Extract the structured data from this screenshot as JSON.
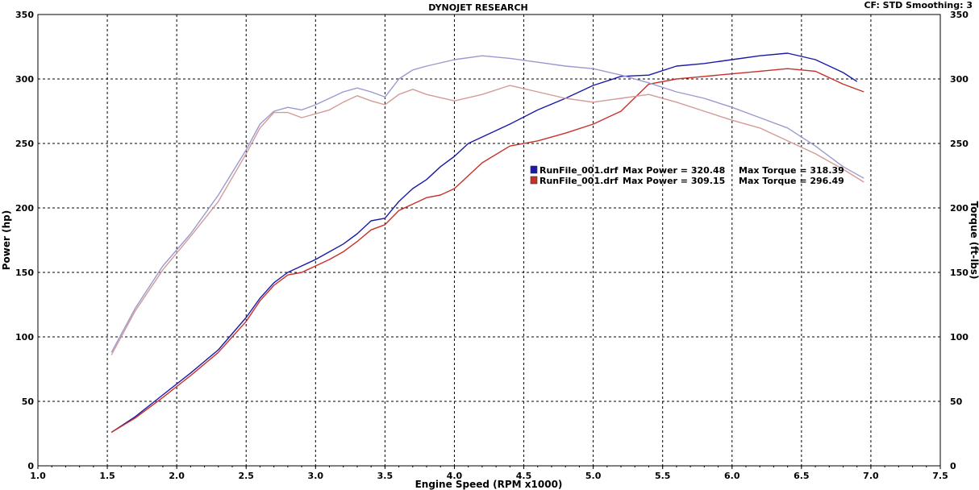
{
  "chart_data": {
    "type": "line",
    "title": "DYNOJET RESEARCH",
    "info": "CF: STD  Smoothing: 3",
    "xlabel": "Engine Speed (RPM x1000)",
    "ylabel": "Power (hp)",
    "y2label": "Torque (ft-lbs)",
    "xlim": [
      1.0,
      7.5
    ],
    "ylim": [
      0,
      350
    ],
    "y2lim": [
      0,
      350
    ],
    "xticks": [
      "1.0",
      "1.5",
      "2.0",
      "2.5",
      "3.0",
      "3.5",
      "4.0",
      "4.5",
      "5.0",
      "5.5",
      "6.0",
      "6.5",
      "7.0",
      "7.5"
    ],
    "yticks": [
      "0",
      "50",
      "100",
      "150",
      "200",
      "250",
      "300",
      "350"
    ],
    "y2ticks": [
      "0",
      "50",
      "100",
      "150",
      "200",
      "250",
      "300",
      "350"
    ],
    "grid": true,
    "legend_position": "center-right",
    "legend": [
      {
        "file": "RunFile_001.drf",
        "power_label": "Max Power = 320.48",
        "torque_label": "Max Torque = 318.39",
        "color": "#1a1aa8"
      },
      {
        "file": "RunFile_001.drf",
        "power_label": "Max Power = 309.15",
        "torque_label": "Max Torque = 296.49",
        "color": "#c8302a"
      }
    ],
    "series": [
      {
        "measure": "power",
        "color": "#1a1aa8",
        "x": [
          1.53,
          1.7,
          1.9,
          2.1,
          2.3,
          2.5,
          2.6,
          2.7,
          2.8,
          2.9,
          3.0,
          3.1,
          3.2,
          3.3,
          3.4,
          3.5,
          3.6,
          3.7,
          3.8,
          3.9,
          4.0,
          4.1,
          4.2,
          4.4,
          4.6,
          4.8,
          5.0,
          5.2,
          5.4,
          5.6,
          5.8,
          6.0,
          6.2,
          6.4,
          6.6,
          6.8,
          6.9
        ],
        "y": [
          26,
          38,
          55,
          72,
          90,
          115,
          130,
          142,
          150,
          155,
          160,
          166,
          172,
          180,
          190,
          192,
          205,
          215,
          222,
          232,
          240,
          250,
          255,
          265,
          276,
          285,
          295,
          302,
          303,
          310,
          312,
          315,
          318,
          320,
          315,
          305,
          298
        ]
      },
      {
        "measure": "power",
        "color": "#c8302a",
        "x": [
          1.53,
          1.7,
          1.9,
          2.1,
          2.3,
          2.5,
          2.6,
          2.7,
          2.8,
          2.9,
          3.0,
          3.1,
          3.2,
          3.3,
          3.4,
          3.5,
          3.6,
          3.7,
          3.8,
          3.9,
          4.0,
          4.1,
          4.2,
          4.4,
          4.6,
          4.8,
          5.0,
          5.2,
          5.4,
          5.6,
          5.8,
          6.0,
          6.2,
          6.4,
          6.6,
          6.8,
          6.95
        ],
        "y": [
          26,
          37,
          53,
          70,
          88,
          112,
          128,
          140,
          148,
          150,
          155,
          160,
          166,
          174,
          183,
          187,
          198,
          203,
          208,
          210,
          215,
          225,
          235,
          248,
          252,
          258,
          265,
          275,
          296,
          300,
          302,
          304,
          306,
          308,
          306,
          296,
          290
        ]
      },
      {
        "measure": "torque",
        "color": "#9a9ad0",
        "x": [
          1.53,
          1.7,
          1.9,
          2.1,
          2.3,
          2.5,
          2.6,
          2.7,
          2.8,
          2.9,
          3.0,
          3.1,
          3.2,
          3.3,
          3.4,
          3.5,
          3.6,
          3.7,
          3.8,
          4.0,
          4.2,
          4.4,
          4.6,
          4.8,
          5.0,
          5.2,
          5.4,
          5.6,
          5.8,
          6.0,
          6.2,
          6.4,
          6.6,
          6.8,
          6.95
        ],
        "y": [
          88,
          122,
          155,
          180,
          210,
          245,
          265,
          275,
          278,
          276,
          280,
          285,
          290,
          293,
          290,
          286,
          300,
          307,
          310,
          315,
          318,
          316,
          313,
          310,
          308,
          303,
          297,
          290,
          285,
          278,
          270,
          262,
          248,
          232,
          223
        ]
      },
      {
        "measure": "torque",
        "color": "#d49a96",
        "x": [
          1.53,
          1.7,
          1.9,
          2.1,
          2.3,
          2.5,
          2.6,
          2.7,
          2.8,
          2.9,
          3.0,
          3.1,
          3.2,
          3.3,
          3.4,
          3.5,
          3.6,
          3.7,
          3.8,
          4.0,
          4.2,
          4.4,
          4.6,
          4.8,
          5.0,
          5.2,
          5.4,
          5.6,
          5.8,
          6.0,
          6.2,
          6.4,
          6.6,
          6.8,
          6.95
        ],
        "y": [
          86,
          120,
          152,
          178,
          205,
          242,
          262,
          274,
          274,
          270,
          273,
          276,
          282,
          287,
          283,
          280,
          288,
          292,
          288,
          283,
          288,
          295,
          290,
          285,
          282,
          285,
          288,
          282,
          275,
          268,
          262,
          252,
          242,
          230,
          220
        ]
      }
    ]
  }
}
